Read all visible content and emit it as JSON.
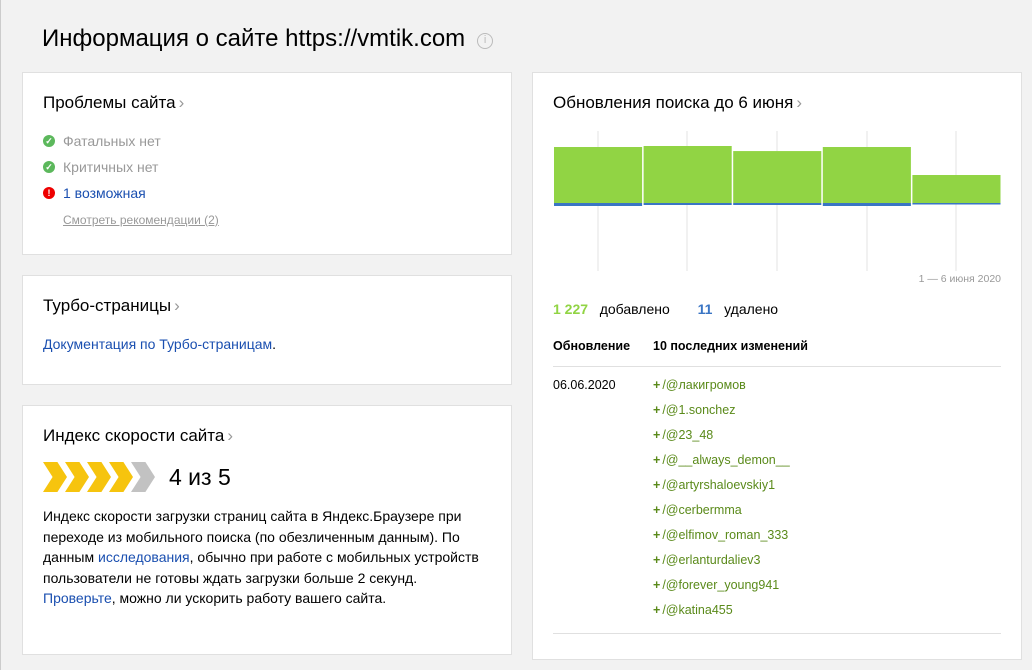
{
  "page": {
    "title": "Информация о сайте https://vmtik.com",
    "info_icon": "info-icon"
  },
  "problems": {
    "title": "Проблемы сайта",
    "items": [
      {
        "text": "Фатальных нет",
        "status": "ok"
      },
      {
        "text": "Критичных нет",
        "status": "ok"
      },
      {
        "text": "1 возможная",
        "status": "warning"
      }
    ],
    "recommendations_link": "Смотреть рекомендации (2)"
  },
  "turbo": {
    "title": "Турбо-страницы",
    "doc_link": "Документация по Турбо-страницам",
    "doc_suffix": "."
  },
  "speed": {
    "title": "Индекс скорости сайта",
    "score": 4,
    "max": 5,
    "score_label": "4 из 5",
    "desc_1": "Индекс скорости загрузки страниц сайта в Яндекс.Браузере при переходе из мобильного поиска (по обезличенным данным). По данным ",
    "link_1": "исследования",
    "desc_2": ", обычно при работе с мобильных устройств пользователи не готовы ждать загрузки больше 2 секунд. ",
    "link_2": "Проверьте",
    "desc_3": ", можно ли ускорить работу вашего сайта."
  },
  "updates": {
    "title": "Обновления поиска до 6 июня",
    "added_count": "1 227",
    "added_label": "добавлено",
    "removed_count": "11",
    "removed_label": "удалено",
    "col_update": "Обновление",
    "col_changes": "10 последних изменений",
    "date": "06.06.2020",
    "changes": [
      "/@лакигромов",
      "/@1.sonchez",
      "/@23_48",
      "/@__always_demon__",
      "/@artyrshaloevskiy1",
      "/@cerbermma",
      "/@elfimov_roman_333",
      "/@erlanturdaliev3",
      "/@forever_young941",
      "/@katina455"
    ]
  },
  "chart_data": {
    "type": "bar",
    "caption": "1 — 6 июня 2020",
    "series": [
      {
        "name": "добавлено",
        "color": "#91d444",
        "values": [
          276,
          281,
          256,
          276,
          138
        ]
      },
      {
        "name": "удалено",
        "color": "#3a75c4",
        "values": [
          3,
          2,
          2,
          3,
          1
        ]
      }
    ]
  }
}
